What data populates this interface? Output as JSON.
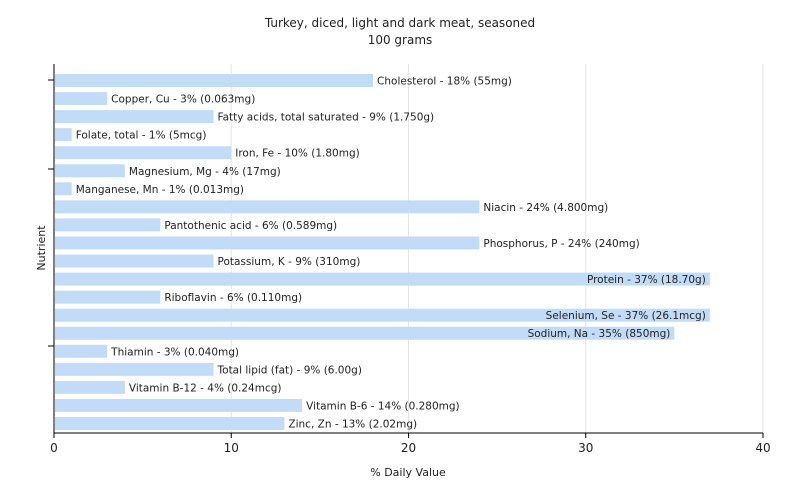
{
  "chart_data": {
    "type": "bar",
    "orientation": "horizontal",
    "title": "Turkey, diced, light and dark meat, seasoned",
    "subtitle": "100 grams",
    "xlabel": "% Daily Value",
    "ylabel": "Nutrient",
    "xlim": [
      0,
      40
    ],
    "xticks": [
      "0",
      "10",
      "20",
      "30",
      "40"
    ],
    "grid": true,
    "bar_color": "#c2dbf7",
    "categories": [
      "Cholesterol",
      "Copper, Cu",
      "Fatty acids, total saturated",
      "Folate, total",
      "Iron, Fe",
      "Magnesium, Mg",
      "Manganese, Mn",
      "Niacin",
      "Pantothenic acid",
      "Phosphorus, P",
      "Potassium, K",
      "Protein",
      "Riboflavin",
      "Selenium, Se",
      "Sodium, Na",
      "Thiamin",
      "Total lipid (fat)",
      "Vitamin B-12",
      "Vitamin B-6",
      "Zinc, Zn"
    ],
    "values": [
      18,
      3,
      9,
      1,
      10,
      4,
      1,
      24,
      6,
      24,
      9,
      37,
      6,
      37,
      35,
      3,
      9,
      4,
      14,
      13
    ],
    "labels": [
      "Cholesterol - 18% (55mg)",
      "Copper, Cu - 3% (0.063mg)",
      "Fatty acids, total saturated - 9% (1.750g)",
      "Folate, total - 1% (5mcg)",
      "Iron, Fe - 10% (1.80mg)",
      "Magnesium, Mg - 4% (17mg)",
      "Manganese, Mn - 1% (0.013mg)",
      "Niacin - 24% (4.800mg)",
      "Pantothenic acid - 6% (0.589mg)",
      "Phosphorus, P - 24% (240mg)",
      "Potassium, K - 9% (310mg)",
      "Protein - 37% (18.70g)",
      "Riboflavin - 6% (0.110mg)",
      "Selenium, Se - 37% (26.1mcg)",
      "Sodium, Na - 35% (850mg)",
      "Thiamin - 3% (0.040mg)",
      "Total lipid (fat) - 9% (6.00g)",
      "Vitamin B-12 - 4% (0.24mcg)",
      "Vitamin B-6 - 14% (0.280mg)",
      "Zinc, Zn - 13% (2.02mg)"
    ]
  }
}
